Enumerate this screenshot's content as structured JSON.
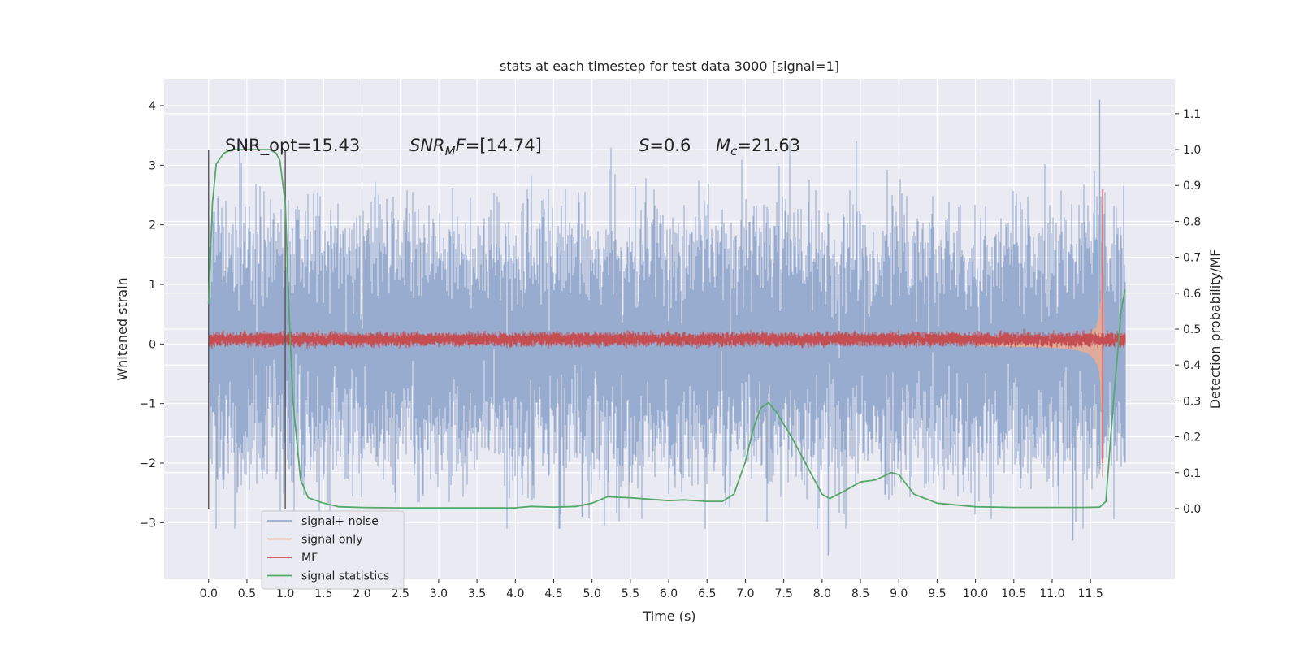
{
  "chart_data": {
    "type": "line",
    "title": "stats at each timestep for test data 3000 [signal=1]",
    "xlabel": "Time (s)",
    "ylabel": "Whitened strain",
    "y2label": "Detection probability/MF",
    "xlim": [
      -0.58,
      12.6
    ],
    "ylim": [
      -3.95,
      4.45
    ],
    "y2lim": [
      -0.197,
      1.197
    ],
    "xticks": [
      "0.0",
      "0.5",
      "1.0",
      "1.5",
      "2.0",
      "2.5",
      "3.0",
      "3.5",
      "4.0",
      "4.5",
      "5.0",
      "5.5",
      "6.0",
      "6.5",
      "7.0",
      "7.5",
      "8.0",
      "8.5",
      "9.0",
      "9.5",
      "10.0",
      "10.5",
      "11.0",
      "11.5"
    ],
    "yticks": [
      "4",
      "3",
      "2",
      "1",
      "0",
      "−1",
      "−2",
      "−3"
    ],
    "y2ticks": [
      "1.1",
      "1.0",
      "0.9",
      "0.8",
      "0.7",
      "0.6",
      "0.5",
      "0.4",
      "0.3",
      "0.2",
      "0.1",
      "0.0"
    ],
    "grid": true,
    "legend_position": "lower-left",
    "annotations": {
      "snr_opt": "SNR_opt=15.43",
      "snr_mf": "SNR_MF=[14.74]",
      "s": "S=0.6",
      "mc": "M_c=21.63"
    },
    "vlines": [
      0.0,
      1.0
    ],
    "series": [
      {
        "name": "signal+ noise",
        "color": "#98acd0",
        "axis": "left",
        "noise_envelope": {
          "time": [
            0,
            11.95
          ],
          "typical_abs": 1.3,
          "max": 4.1,
          "min": -3.55
        }
      },
      {
        "name": "signal only",
        "color": "#e8ab93",
        "axis": "left",
        "chirp": {
          "time": [
            10.0,
            11.7
          ],
          "peak_amplitude": 2.6,
          "merger_time": 11.66
        }
      },
      {
        "name": "MF",
        "color": "#c44e52",
        "axis": "left",
        "band": {
          "time": [
            0,
            11.95
          ],
          "center": 0.08,
          "spread": 0.1
        }
      },
      {
        "name": "signal statistics",
        "color": "#55a868",
        "axis": "right",
        "x": [
          0.0,
          0.05,
          0.1,
          0.2,
          0.3,
          0.5,
          0.8,
          0.88,
          0.93,
          1.0,
          1.05,
          1.1,
          1.2,
          1.3,
          1.5,
          1.7,
          2.0,
          2.5,
          3.0,
          3.5,
          4.0,
          4.2,
          4.5,
          4.8,
          5.0,
          5.2,
          5.5,
          6.0,
          6.2,
          6.5,
          6.7,
          6.85,
          7.0,
          7.1,
          7.2,
          7.3,
          7.4,
          7.6,
          7.8,
          8.0,
          8.1,
          8.3,
          8.5,
          8.7,
          8.9,
          9.0,
          9.2,
          9.5,
          10.0,
          10.5,
          11.0,
          11.4,
          11.62,
          11.7,
          11.8,
          11.9,
          11.95
        ],
        "y": [
          0.57,
          0.85,
          0.96,
          0.99,
          1.0,
          1.0,
          1.0,
          0.99,
          0.97,
          0.85,
          0.55,
          0.3,
          0.08,
          0.03,
          0.015,
          0.005,
          0.003,
          0.002,
          0.002,
          0.002,
          0.002,
          0.006,
          0.004,
          0.006,
          0.015,
          0.033,
          0.03,
          0.022,
          0.024,
          0.02,
          0.02,
          0.04,
          0.13,
          0.22,
          0.28,
          0.295,
          0.27,
          0.2,
          0.12,
          0.04,
          0.028,
          0.05,
          0.074,
          0.08,
          0.1,
          0.095,
          0.04,
          0.015,
          0.005,
          0.003,
          0.003,
          0.003,
          0.004,
          0.02,
          0.3,
          0.55,
          0.61
        ]
      }
    ]
  }
}
